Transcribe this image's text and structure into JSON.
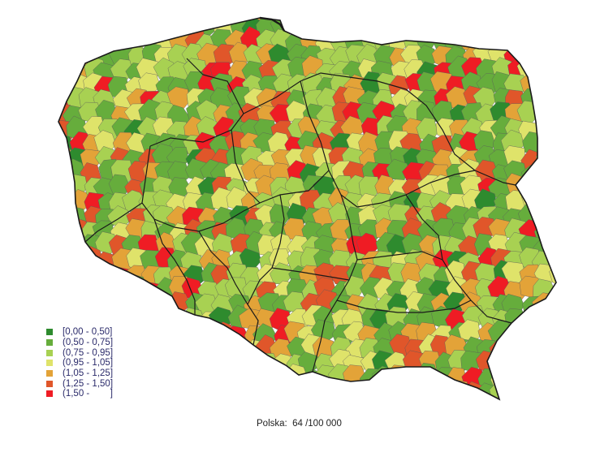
{
  "legend": {
    "items": [
      {
        "label": "[0,00 - 0,50]",
        "color": "#2e8b2e"
      },
      {
        "label": "(0,50 - 0,75]",
        "color": "#66ad3c"
      },
      {
        "label": "(0,75 - 0,95]",
        "color": "#a8d152"
      },
      {
        "label": "(0,95 - 1,05]",
        "color": "#dfe36a"
      },
      {
        "label": "(1,05 - 1,25]",
        "color": "#e3a338"
      },
      {
        "label": "(1,25 - 1,50]",
        "color": "#e0562a"
      },
      {
        "label": "(1,50 -        ]",
        "color": "#ef1c24"
      }
    ]
  },
  "caption": "Polska:  64 /100 000",
  "map": {
    "country": "Polska",
    "border_color": "#1a1a1a",
    "sea_line_color": "#1a1a1a"
  }
}
